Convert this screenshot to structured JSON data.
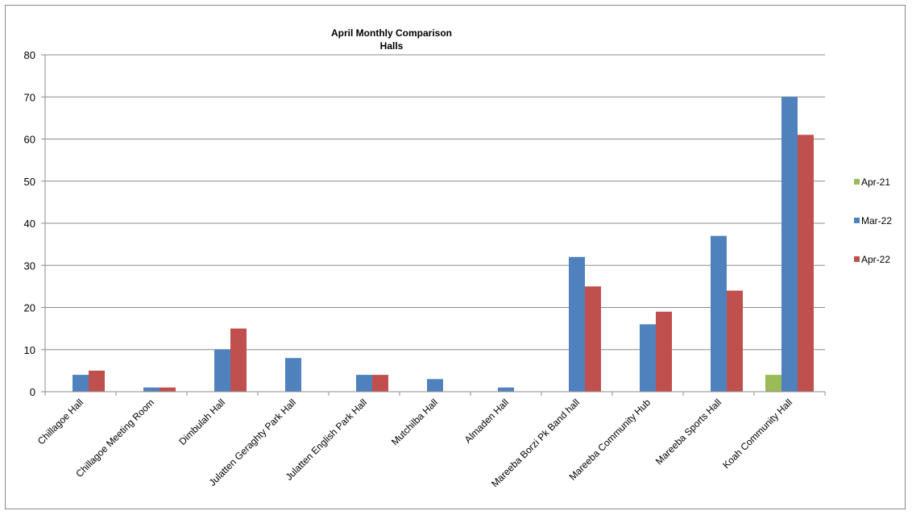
{
  "chart_data": {
    "type": "bar",
    "title": "April Monthly Comparison",
    "subtitle": "Halls",
    "xlabel": "",
    "ylabel": "",
    "ylim": [
      0,
      80
    ],
    "y_ticks": [
      0,
      10,
      20,
      30,
      40,
      50,
      60,
      70,
      80
    ],
    "grid": true,
    "legend_position": "right",
    "categories": [
      "Chillagoe Hall",
      "Chillagoe Meeting Room",
      "Dimbulah Hall",
      "Julatten Geraghty Park Hall",
      "Julatten English Park Hall",
      "Mutchilba Hall",
      "Almaden Hall",
      "Mareeba Borzi Pk Band hall",
      "Mareeba Community Hub",
      "Mareeba Sports Hall",
      "Koah Community Hall"
    ],
    "series": [
      {
        "name": "Apr-21",
        "color": "#9bbb59",
        "values": [
          0,
          0,
          0,
          0,
          0,
          0,
          0,
          0,
          0,
          0,
          4
        ]
      },
      {
        "name": "Mar-22",
        "color": "#4f81bd",
        "values": [
          4,
          1,
          10,
          8,
          4,
          3,
          1,
          32,
          16,
          37,
          70
        ]
      },
      {
        "name": "Apr-22",
        "color": "#c0504d",
        "values": [
          5,
          1,
          15,
          0,
          4,
          0,
          0,
          25,
          19,
          24,
          61
        ]
      }
    ]
  }
}
